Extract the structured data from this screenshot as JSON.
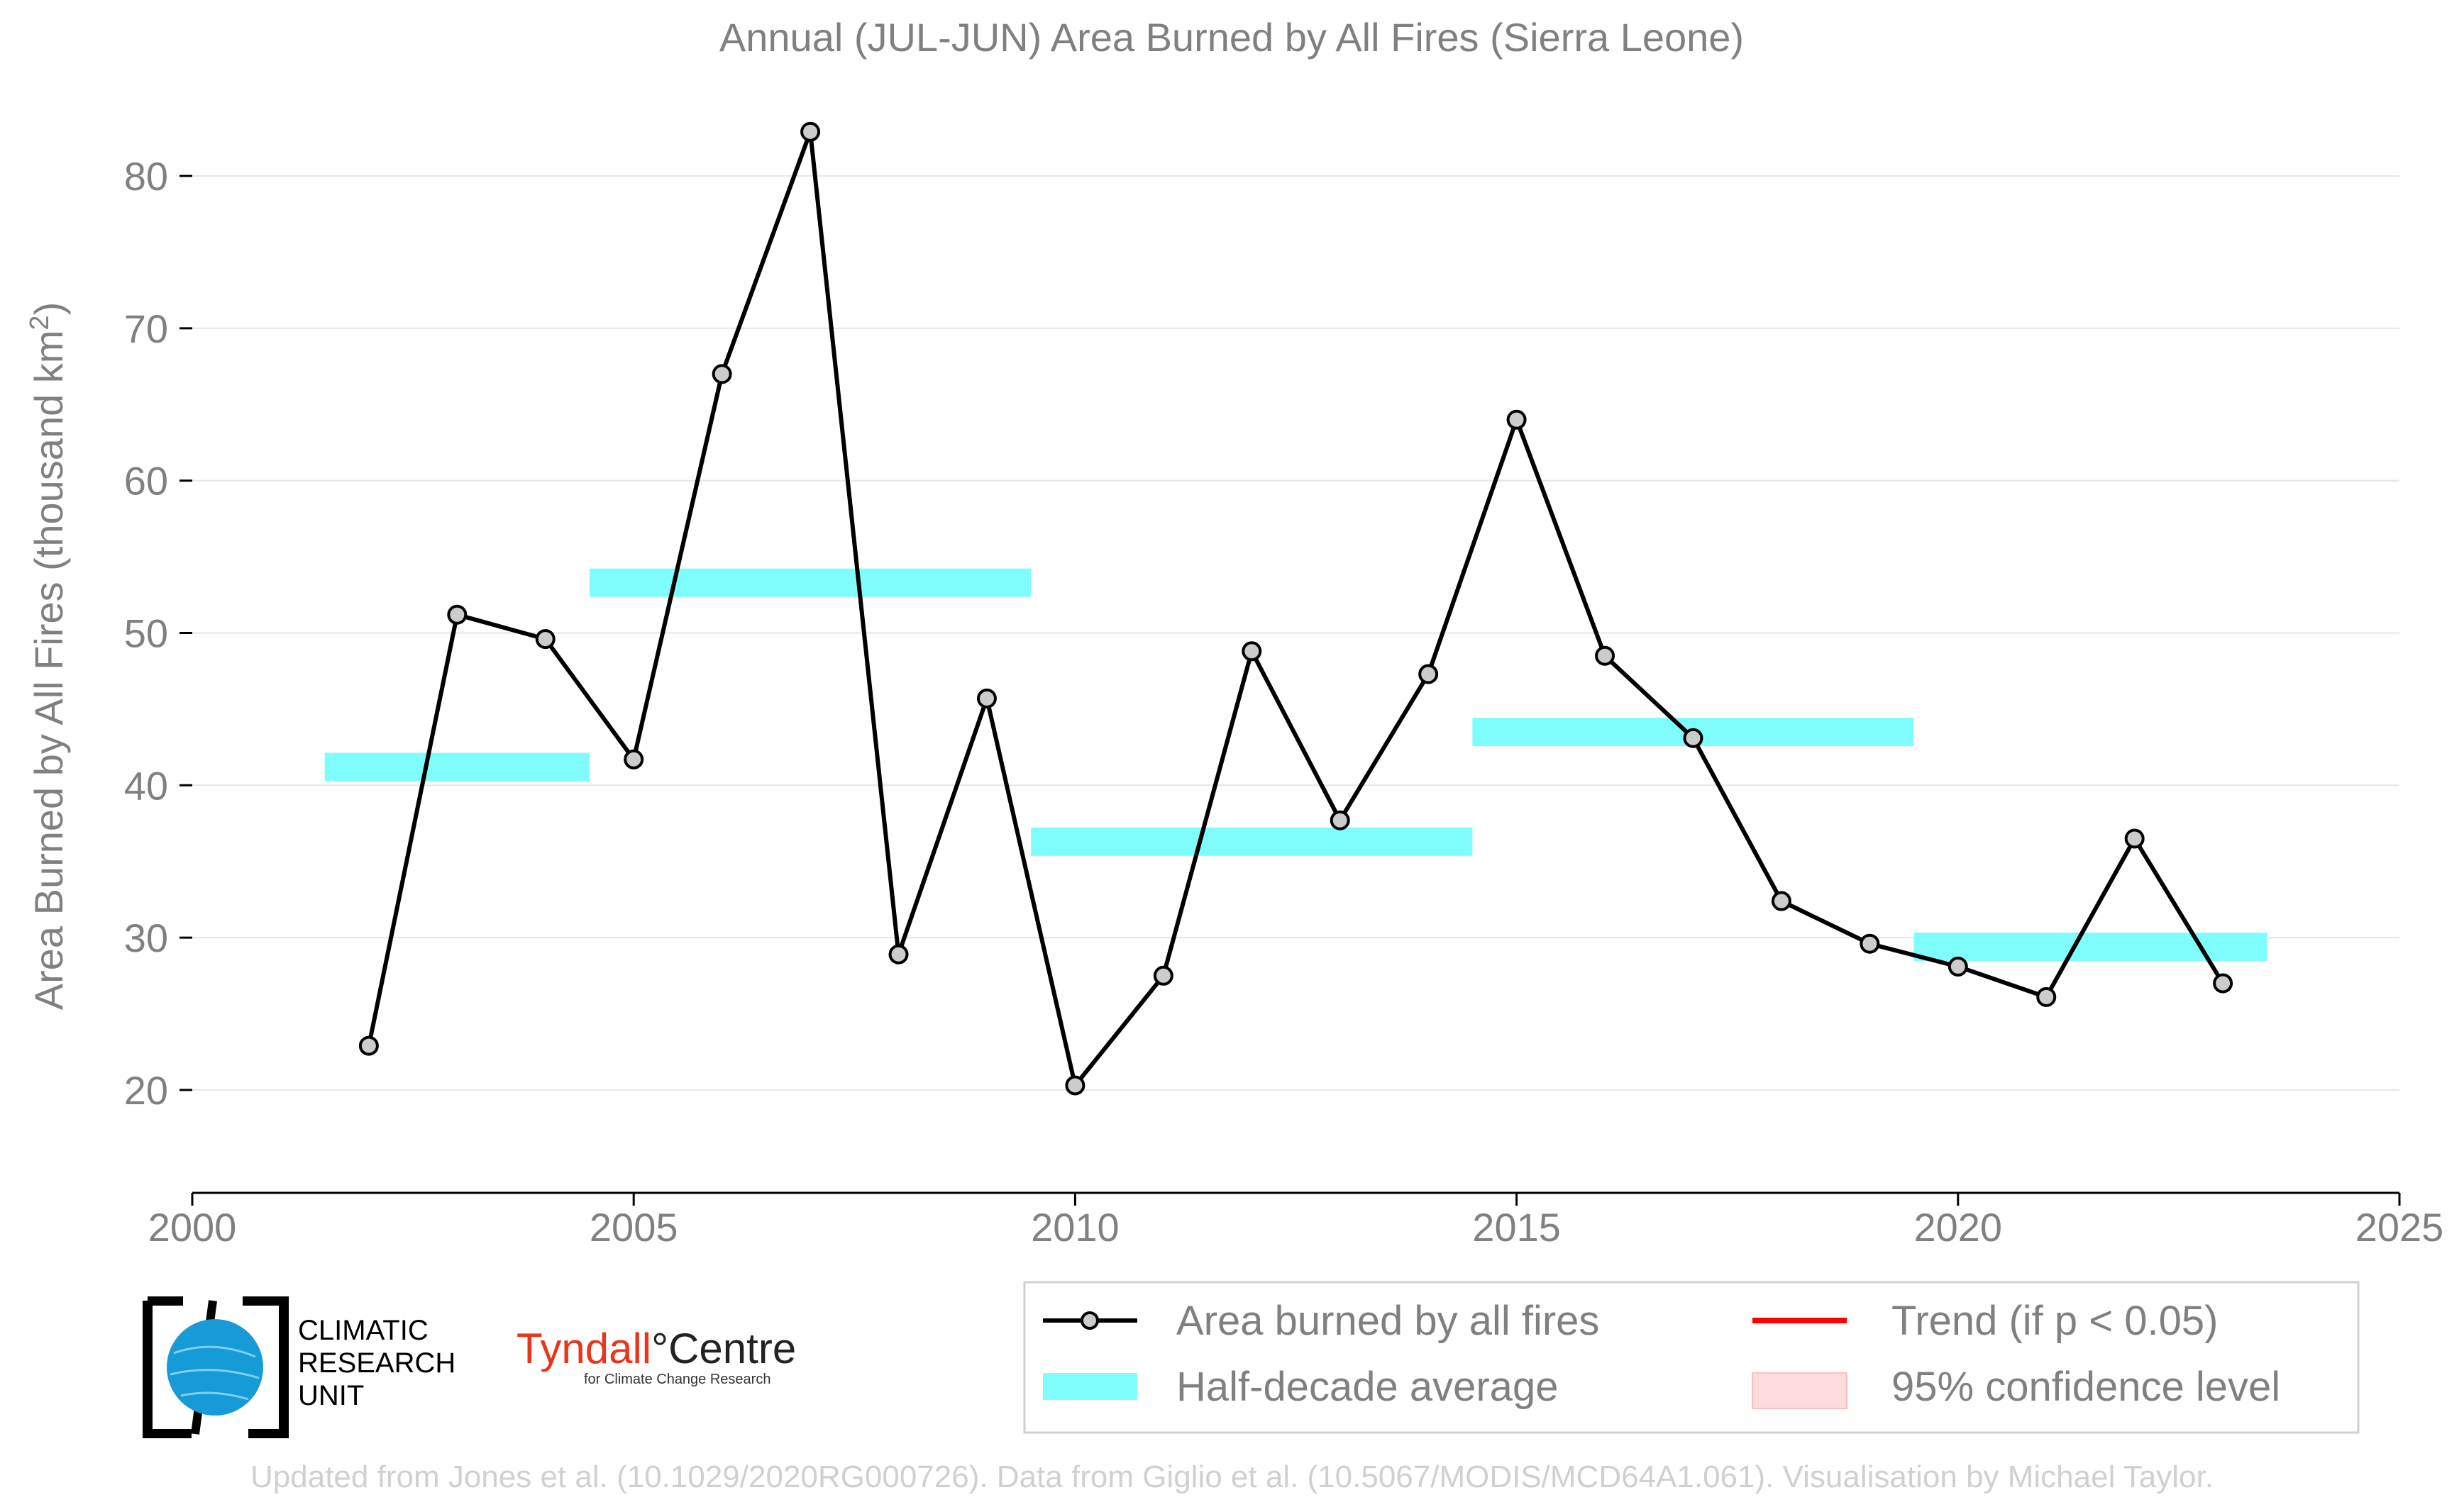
{
  "chart_data": {
    "type": "line",
    "title": "Annual (JUL-JUN) Area Burned by All Fires (Sierra Leone)",
    "xlabel": "",
    "ylabel": "Area Burned by All Fires (thousand km",
    "ylabel_superscript": "2",
    "ylabel_suffix": ")",
    "xlim": [
      2000,
      2025
    ],
    "ylim": [
      15.2,
      85.5
    ],
    "xticks": [
      2000,
      2005,
      2010,
      2015,
      2020,
      2025
    ],
    "yticks": [
      20,
      30,
      40,
      50,
      60,
      70,
      80
    ],
    "grid": true,
    "series": [
      {
        "name": "Area burned by all fires",
        "color": "#000000",
        "marker_fill": "#cccccc",
        "x": [
          2002,
          2003,
          2004,
          2005,
          2006,
          2007,
          2008,
          2009,
          2010,
          2011,
          2012,
          2013,
          2014,
          2015,
          2016,
          2017,
          2018,
          2019,
          2020,
          2021,
          2022,
          2023
        ],
        "y": [
          22.9,
          51.2,
          49.6,
          41.7,
          67.0,
          82.9,
          28.9,
          45.7,
          20.3,
          27.5,
          48.8,
          37.7,
          47.3,
          64.0,
          48.5,
          43.1,
          32.4,
          29.6,
          28.1,
          26.1,
          36.5,
          27.0
        ]
      },
      {
        "name": "Half-decade average",
        "color": "#7ffdfd",
        "type": "segments",
        "segments": [
          {
            "x0": 2001.5,
            "x1": 2004.5,
            "y": 41.2
          },
          {
            "x0": 2004.5,
            "x1": 2009.5,
            "y": 53.3
          },
          {
            "x0": 2009.5,
            "x1": 2014.5,
            "y": 36.3
          },
          {
            "x0": 2014.5,
            "x1": 2019.5,
            "y": 43.5
          },
          {
            "x0": 2019.5,
            "x1": 2023.5,
            "y": 29.4
          }
        ]
      }
    ],
    "legend": {
      "placement": "bottom-right",
      "entries": [
        {
          "label": "Area burned by all fires",
          "kind": "line-marker",
          "color": "#000000"
        },
        {
          "label": "Trend (if p < 0.05)",
          "kind": "line",
          "color": "#ff0000"
        },
        {
          "label": "Half-decade average",
          "kind": "band",
          "color": "#7ffdfd"
        },
        {
          "label": "95% confidence level",
          "kind": "patch",
          "color": "#ffdcdc"
        }
      ]
    }
  },
  "logos": {
    "cru": [
      "CLIMATIC",
      "RESEARCH",
      "UNIT"
    ],
    "tyndall_main_1": "Tyndall",
    "tyndall_main_2": "°Centre",
    "tyndall_sub": "for Climate Change Research"
  },
  "footer": "Updated from Jones et al. (10.1029/2020RG000726). Data from Giglio et al. (10.5067/MODIS/MCD64A1.061). Visualisation by Michael Taylor.",
  "colors": {
    "text_gray": "#808080",
    "grid": "#e6e6e6",
    "average": "#7ffdfd",
    "trend": "#ff0000",
    "confidence": "#ffdcdc"
  }
}
